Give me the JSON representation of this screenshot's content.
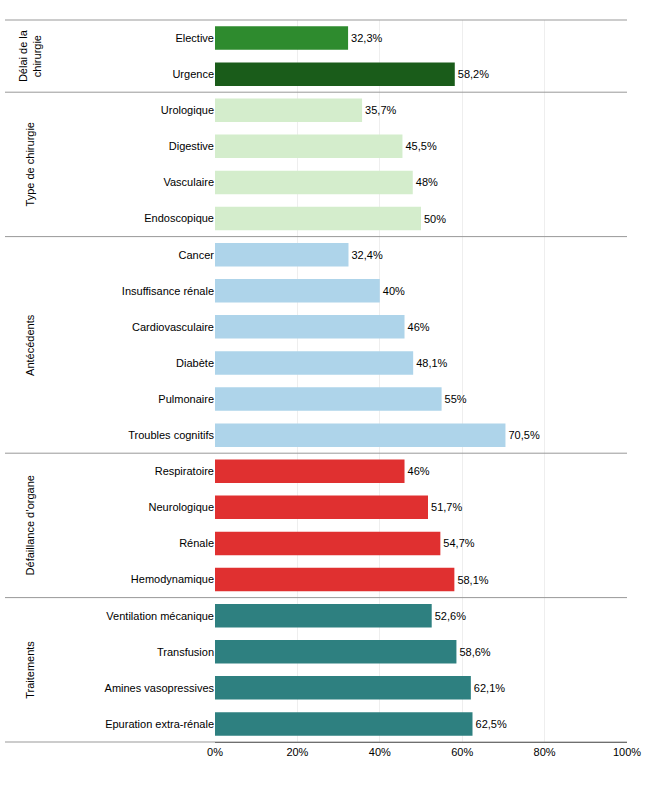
{
  "chart_data": {
    "type": "bar",
    "orientation": "horizontal",
    "categories": [
      "Elective",
      "Urgence",
      "Urologique",
      "Digestive",
      "Vasculaire",
      "Endoscopique",
      "Cancer",
      "Insuffisance rénale",
      "Cardiovasculaire",
      "Diabète",
      "Pulmonaire",
      "Troubles cognitifs",
      "Respiratoire",
      "Neurologique",
      "Rénale",
      "Hemodynamique",
      "Ventilation mécanique",
      "Transfusion",
      "Amines vasopressives",
      "Epuration extra-rénale"
    ],
    "values": [
      32.3,
      58.2,
      35.7,
      45.5,
      48.0,
      50.0,
      32.4,
      40.0,
      46.0,
      48.1,
      55.0,
      70.5,
      46.0,
      51.7,
      54.7,
      58.1,
      52.6,
      58.6,
      62.1,
      62.5
    ],
    "value_labels": [
      "32,3%",
      "58,2%",
      "35,7%",
      "45,5%",
      "48%",
      "50%",
      "32,4%",
      "40%",
      "46%",
      "48,1%",
      "55%",
      "70,5%",
      "46%",
      "51,7%",
      "54,7%",
      "58,1%",
      "52,6%",
      "58,6%",
      "62,1%",
      "62,5%"
    ],
    "data_labels": true,
    "colors": [
      "#2e8b2e",
      "#1a5c1a",
      "#d4edcc",
      "#d4edcc",
      "#d4edcc",
      "#d4edcc",
      "#aed4ea",
      "#aed4ea",
      "#aed4ea",
      "#aed4ea",
      "#aed4ea",
      "#aed4ea",
      "#e03030",
      "#e03030",
      "#e03030",
      "#e03030",
      "#2e8080",
      "#2e8080",
      "#2e8080",
      "#2e8080"
    ],
    "groups": [
      {
        "label": "Délai de la\nchirurgie",
        "categories": [
          "Elective",
          "Urgence"
        ]
      },
      {
        "label": "Type de chirurgie",
        "categories": [
          "Urologique",
          "Digestive",
          "Vasculaire",
          "Endoscopique"
        ]
      },
      {
        "label": "Antécédents",
        "categories": [
          "Cancer",
          "Insuffisance rénale",
          "Cardiovasculaire",
          "Diabète",
          "Pulmonaire",
          "Troubles cognitifs"
        ]
      },
      {
        "label": "Défaillance d’organe",
        "categories": [
          "Respiratoire",
          "Neurologique",
          "Rénale",
          "Hemodynamique"
        ]
      },
      {
        "label": "Traitements",
        "categories": [
          "Ventilation mécanique",
          "Transfusion",
          "Amines vasopressives",
          "Epuration extra-rénale"
        ]
      }
    ],
    "xlim": [
      0,
      100
    ],
    "xticks": [
      {
        "value": 0,
        "label": "0%"
      },
      {
        "value": 20,
        "label": "20%"
      },
      {
        "value": 40,
        "label": "40%"
      },
      {
        "value": 60,
        "label": "60%"
      },
      {
        "value": 80,
        "label": "80%"
      },
      {
        "value": 100,
        "label": "100%"
      }
    ],
    "grid": true
  }
}
